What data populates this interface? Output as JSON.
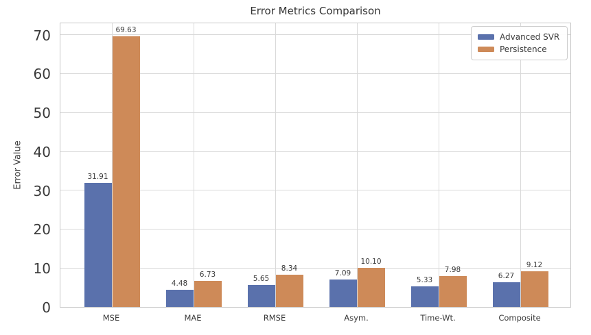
{
  "chart_data": {
    "type": "bar",
    "title": "Error Metrics Comparison",
    "xlabel": "",
    "ylabel": "Error Value",
    "categories": [
      "MSE",
      "MAE",
      "RMSE",
      "Asym.",
      "Time-Wt.",
      "Composite"
    ],
    "series": [
      {
        "name": "Advanced SVR",
        "color": "#5a71ac",
        "values": [
          31.91,
          4.48,
          5.65,
          7.09,
          5.33,
          6.27
        ],
        "labels": [
          "31.91",
          "4.48",
          "5.65",
          "7.09",
          "5.33",
          "6.27"
        ]
      },
      {
        "name": "Persistence",
        "color": "#ce8a58",
        "values": [
          69.63,
          6.73,
          8.34,
          10.1,
          7.98,
          9.12
        ],
        "labels": [
          "69.63",
          "6.73",
          "8.34",
          "10.10",
          "7.98",
          "9.12"
        ]
      }
    ],
    "yticks": [
      0,
      10,
      20,
      30,
      40,
      50,
      60,
      70
    ],
    "ytick_labels": [
      "0",
      "10",
      "20",
      "30",
      "40",
      "50",
      "60",
      "70"
    ],
    "ylim": [
      0,
      73.3
    ],
    "grid": true,
    "legend_position": "upper right",
    "colors": {
      "grid": "#d9d9d9",
      "spine": "#c6c6c6",
      "text": "#3a3a3a",
      "background": "#ffffff"
    }
  }
}
